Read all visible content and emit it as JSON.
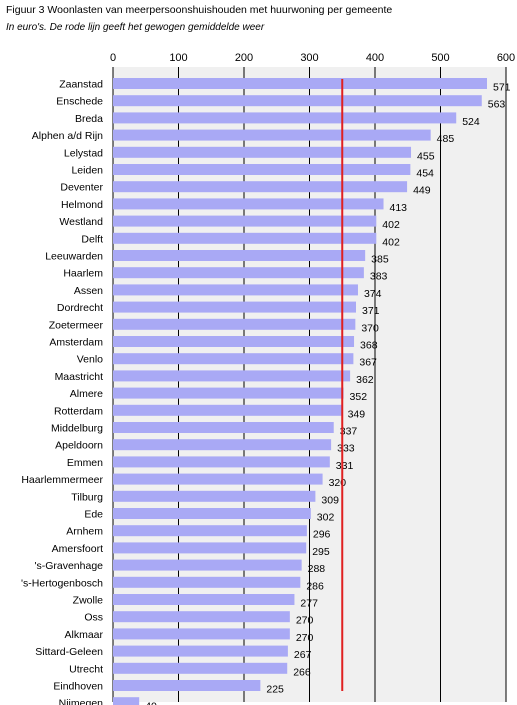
{
  "title": "Figuur 3 Woonlasten van meerpersoonshuishouden  met huurwoning per gemeente",
  "subtitle": "In euro's. De rode lijn geeft het gewogen gemiddelde weer",
  "colors": {
    "bar": "#a9a9f5",
    "reference_line": "#e02020",
    "plot_background": "#f0f0f0",
    "gridline": "#000000"
  },
  "chart_data": {
    "type": "bar",
    "orientation": "horizontal",
    "title": "Figuur 3 Woonlasten van meerpersoonshuishouden  met huurwoning per gemeente",
    "subtitle": "In euro's. De rode lijn geeft het gewogen gemiddelde weer",
    "xlim": [
      0,
      600
    ],
    "xticks": [
      0,
      100,
      200,
      300,
      400,
      500,
      600
    ],
    "x_axis_position": "top",
    "grid": "vertical",
    "reference_line": {
      "value": 350
    },
    "categories": [
      "Zaanstad",
      "Enschede",
      "Breda",
      "Alphen a/d Rijn",
      "Lelystad",
      "Leiden",
      "Deventer",
      "Helmond",
      "Westland",
      "Delft",
      "Leeuwarden",
      "Haarlem",
      "Assen",
      "Dordrecht",
      "Zoetermeer",
      "Amsterdam",
      "Venlo",
      "Maastricht",
      "Almere",
      "Rotterdam",
      "Middelburg",
      "Apeldoorn",
      "Emmen",
      "Haarlemmermeer",
      "Tilburg",
      "Ede",
      "Arnhem",
      "Amersfoort",
      "'s-Gravenhage",
      "'s-Hertogenbosch",
      "Zwolle",
      "Oss",
      "Alkmaar",
      "Sittard-Geleen",
      "Utrecht",
      "Eindhoven",
      "Nijmegen"
    ],
    "values": [
      571,
      563,
      524,
      485,
      455,
      454,
      449,
      413,
      402,
      402,
      385,
      383,
      374,
      371,
      370,
      368,
      367,
      362,
      352,
      349,
      337,
      333,
      331,
      320,
      309,
      302,
      296,
      295,
      288,
      286,
      277,
      270,
      270,
      267,
      266,
      225,
      40
    ]
  }
}
